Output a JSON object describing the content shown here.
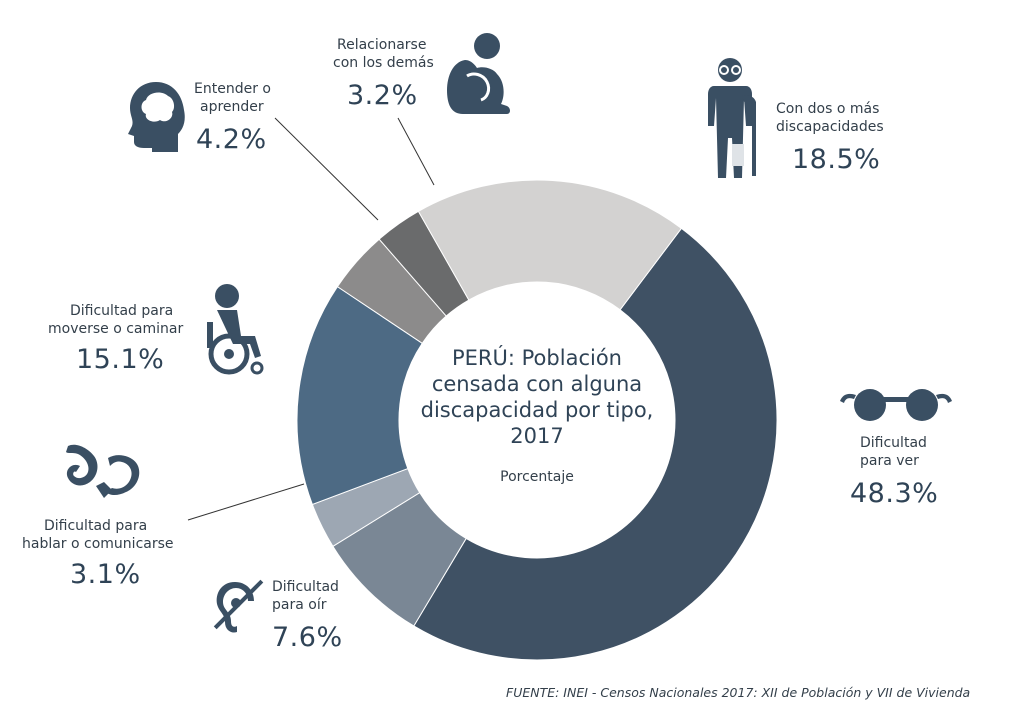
{
  "chart_data": {
    "type": "pie",
    "title": "PERÚ: Población censada con alguna discapacidad por tipo, 2017",
    "subtitle": "Porcentaje",
    "categories": [
      "Dificultad para ver",
      "Dificultad para oír",
      "Dificultad para hablar o comunicarse",
      "Dificultad para moverse o caminar",
      "Entender o aprender",
      "Relacionarse con los demás",
      "Con dos o más discapacidades"
    ],
    "values": [
      48.3,
      7.6,
      3.1,
      15.1,
      4.2,
      3.2,
      18.5
    ],
    "value_labels": [
      "48.3%",
      "7.6%",
      "3.1%",
      "15.1%",
      "4.2%",
      "3.2%",
      "18.5%"
    ],
    "colors": [
      "#3f5164",
      "#7a8795",
      "#9da7b3",
      "#4d6a84",
      "#8c8b8b",
      "#6a6b6c",
      "#d3d2d1"
    ],
    "legend": "none"
  },
  "labels": {
    "ver": {
      "line1": "Dificultad",
      "line2": "para ver",
      "pct": "48.3%"
    },
    "oir": {
      "line1": "Dificultad",
      "line2": "para oír",
      "pct": "7.6%"
    },
    "hablar": {
      "line1": "Dificultad para",
      "line2": "hablar o comunicarse",
      "pct": "3.1%"
    },
    "moverse": {
      "line1": "Dificultad para",
      "line2": "moverse o caminar",
      "pct": "15.1%"
    },
    "entender": {
      "line1": "Entender o",
      "line2": "aprender",
      "pct": "4.2%"
    },
    "relacionarse": {
      "line1": "Relacionarse",
      "line2": "con los demás",
      "pct": "3.2%"
    },
    "dos": {
      "line1": "Con dos o más",
      "line2": "discapacidades",
      "pct": "18.5%"
    }
  },
  "center": {
    "title_lines": [
      "PERÚ: Población",
      "censada con alguna",
      "discapacidad por tipo,",
      "2017"
    ],
    "subtitle": "Porcentaje"
  },
  "source": "FUENTE: INEI - Censos Nacionales 2017: XII de Población y VII de Vivienda",
  "icons": [
    "eyeglasses-icon",
    "ear-crossed-icon",
    "sign-language-hands-icon",
    "wheelchair-icon",
    "head-brain-icon",
    "sitting-person-icon",
    "elderly-person-cane-icon"
  ]
}
